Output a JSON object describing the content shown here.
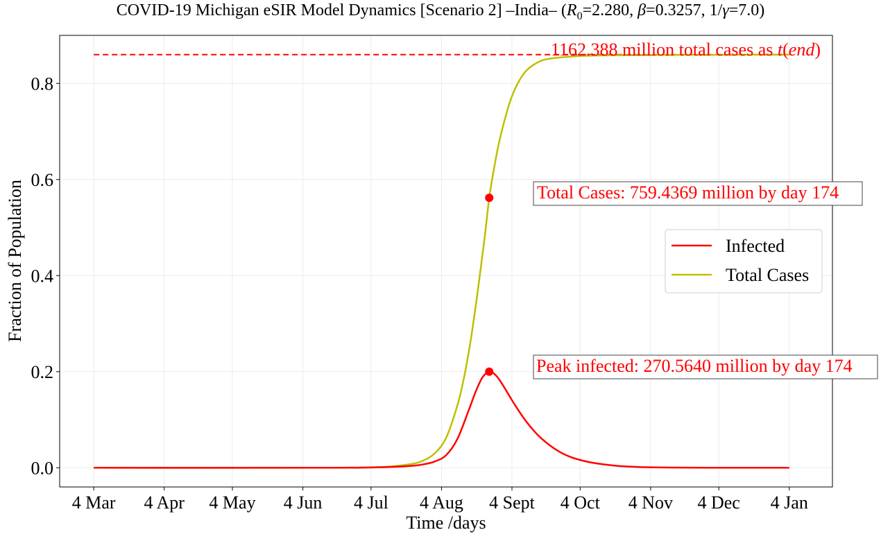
{
  "title": {
    "prefix": "COVID-19 Michigan eSIR Model Dynamics [Scenario 2] –India– (",
    "r0_symbol": "R",
    "r0_sub": "0",
    "r0_value": "=2.280, ",
    "beta_symbol": "β",
    "beta_value": "=0.3257, 1/",
    "gamma_symbol": "γ",
    "gamma_value": "=7.0)"
  },
  "chart_data": {
    "type": "line",
    "xlabel": "Time /days",
    "ylabel": "Fraction of Population",
    "x_ticks": [
      {
        "day": 0,
        "label": "4 Mar"
      },
      {
        "day": 31,
        "label": "4 Apr"
      },
      {
        "day": 61,
        "label": "4 May"
      },
      {
        "day": 92,
        "label": "4 Jun"
      },
      {
        "day": 122,
        "label": "4 Jul"
      },
      {
        "day": 153,
        "label": "4 Aug"
      },
      {
        "day": 184,
        "label": "4 Sept"
      },
      {
        "day": 214,
        "label": "4 Oct"
      },
      {
        "day": 245,
        "label": "4 Nov"
      },
      {
        "day": 275,
        "label": "4 Dec"
      },
      {
        "day": 306,
        "label": "4 Jan"
      }
    ],
    "xlim": [
      -15,
      325
    ],
    "ylim": [
      -0.04,
      0.9
    ],
    "y_ticks": [
      {
        "value": 0.0,
        "label": "0.0"
      },
      {
        "value": 0.2,
        "label": "0.2"
      },
      {
        "value": 0.4,
        "label": "0.4"
      },
      {
        "value": 0.6,
        "label": "0.6"
      },
      {
        "value": 0.8,
        "label": "0.8"
      }
    ],
    "grid": true,
    "legend_position": "center-right",
    "series": [
      {
        "name": "Infected",
        "color": "#ff0000",
        "x": [
          0,
          100,
          120,
          130,
          140,
          145,
          150,
          155,
          160,
          165,
          168,
          171,
          174,
          177,
          180,
          185,
          190,
          195,
          200,
          205,
          210,
          215,
          220,
          230,
          240,
          250,
          260,
          280,
          306
        ],
        "y": [
          0.0,
          0.0,
          0.0005,
          0.0015,
          0.004,
          0.007,
          0.013,
          0.026,
          0.06,
          0.12,
          0.158,
          0.188,
          0.2,
          0.192,
          0.172,
          0.133,
          0.098,
          0.07,
          0.049,
          0.033,
          0.022,
          0.015,
          0.01,
          0.004,
          0.0015,
          0.0006,
          0.0002,
          0.0,
          0.0
        ]
      },
      {
        "name": "Total Cases",
        "color": "#bfbf00",
        "x": [
          0,
          100,
          120,
          130,
          140,
          145,
          150,
          155,
          160,
          163,
          166,
          169,
          172,
          174,
          176,
          178,
          180,
          183,
          186,
          190,
          195,
          200,
          210,
          220,
          240,
          306
        ],
        "y": [
          0.0,
          0.0,
          0.0008,
          0.0025,
          0.008,
          0.015,
          0.03,
          0.062,
          0.13,
          0.19,
          0.27,
          0.37,
          0.48,
          0.562,
          0.62,
          0.67,
          0.71,
          0.76,
          0.795,
          0.825,
          0.843,
          0.851,
          0.856,
          0.858,
          0.859,
          0.86
        ]
      }
    ],
    "markers": [
      {
        "series": "Infected",
        "x": 174,
        "y": 0.2,
        "color": "#ff0000"
      },
      {
        "series": "Total Cases",
        "x": 174,
        "y": 0.562,
        "color": "#ff0000"
      }
    ],
    "hline": {
      "y": 0.86,
      "x_start": 0,
      "x_end": 306,
      "color": "#ff0000",
      "style": "dashed"
    },
    "annotations": {
      "total_end": {
        "prefix": "1162.388 million total cases as ",
        "italic_part": "t",
        "paren_open": "(",
        "italic_part2": "end",
        "paren_close": ")"
      },
      "total_cases": "Total Cases: 759.4369 million by day 174",
      "peak_infected": "Peak infected: 270.5640 million by day 174"
    }
  }
}
